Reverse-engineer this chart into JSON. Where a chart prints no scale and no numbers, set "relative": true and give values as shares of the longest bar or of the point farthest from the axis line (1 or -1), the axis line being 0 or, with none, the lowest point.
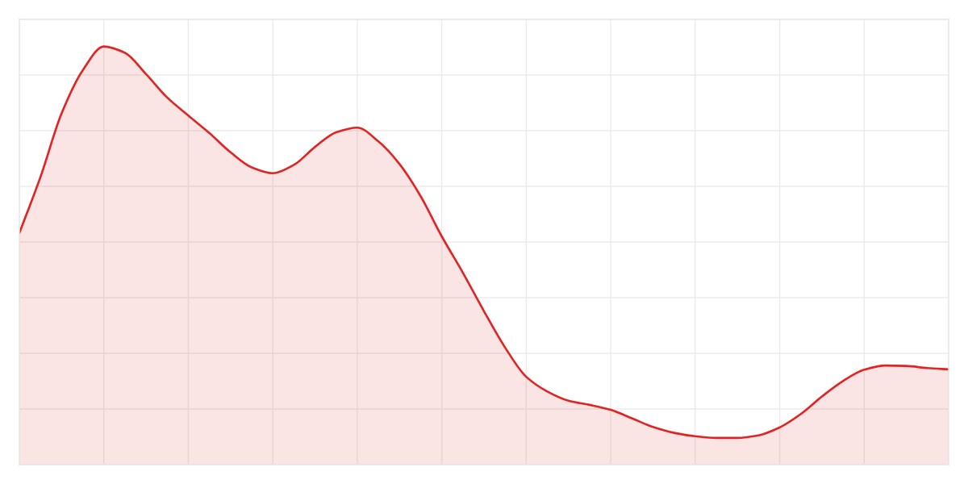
{
  "chart_data": {
    "type": "area",
    "relative": true,
    "categories": [
      null,
      null,
      null,
      null,
      null,
      null,
      null,
      null,
      null,
      null,
      null,
      null,
      null,
      null,
      null,
      null,
      null,
      null,
      null,
      null,
      null,
      null,
      null,
      null,
      null,
      null,
      null,
      null,
      null,
      null,
      null,
      null,
      null,
      null,
      null,
      null,
      null,
      null,
      null,
      null,
      null,
      null,
      null,
      null,
      null
    ],
    "series": [
      {
        "color": "#e02424",
        "values": [
          0.554,
          0.688,
          0.84,
          0.943,
          1,
          0.985,
          0.934,
          0.878,
          0.835,
          0.793,
          0.747,
          0.711,
          0.697,
          0.717,
          0.76,
          0.795,
          0.806,
          0.773,
          0.719,
          0.642,
          0.546,
          0.459,
          0.367,
          0.28,
          0.21,
          0.175,
          0.153,
          0.143,
          0.131,
          0.111,
          0.09,
          0.076,
          0.068,
          0.064,
          0.064,
          0.07,
          0.089,
          0.121,
          0.163,
          0.2,
          0.227,
          0.237,
          0.236,
          0.231,
          0.228
        ]
      }
    ],
    "grid": true
  }
}
